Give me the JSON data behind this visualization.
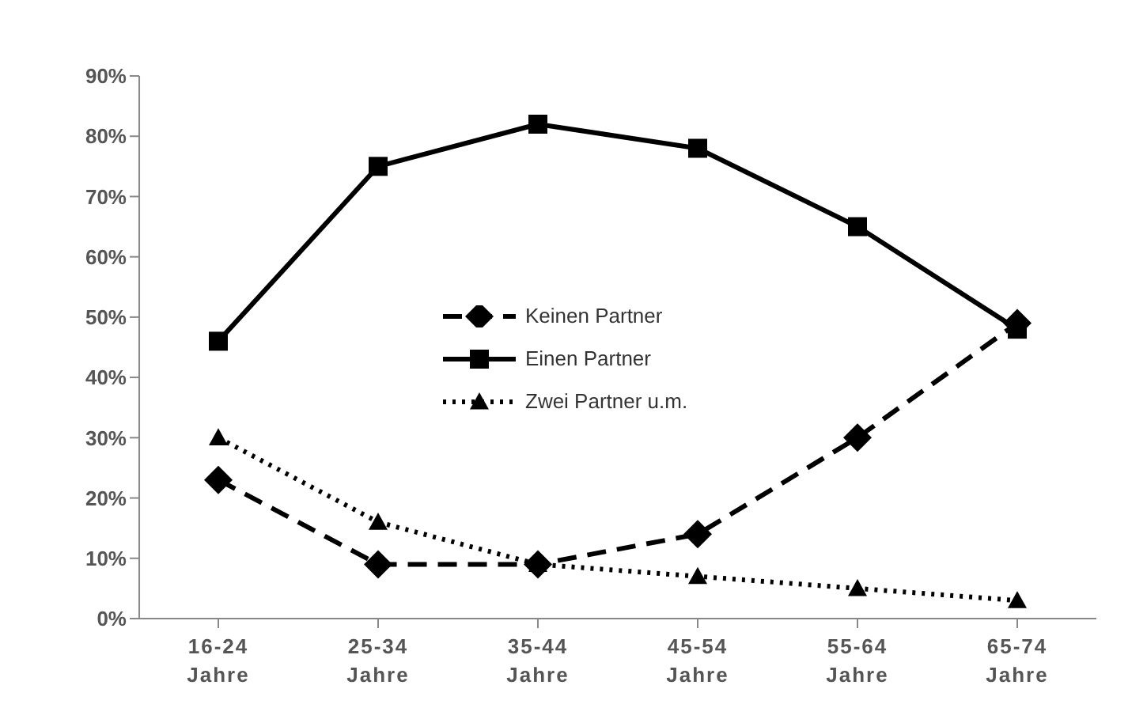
{
  "chart_data": {
    "type": "line",
    "categories": [
      "16-24 Jahre",
      "25-34 Jahre",
      "35-44 Jahre",
      "45-54 Jahre",
      "55-64 Jahre",
      "65-74 Jahre"
    ],
    "series": [
      {
        "name": "Keinen Partner",
        "color": "#000000",
        "values": [
          23,
          9,
          9,
          14,
          30,
          49
        ],
        "marker": "diamond",
        "line_style": "dashed"
      },
      {
        "name": "Einen Partner",
        "color": "#000000",
        "values": [
          46,
          75,
          82,
          78,
          65,
          48
        ],
        "marker": "square",
        "line_style": "solid"
      },
      {
        "name": "Zwei Partner u.m.",
        "color": "#000000",
        "values": [
          30,
          16,
          9,
          7,
          5,
          3
        ],
        "marker": "triangle",
        "line_style": "dotted"
      }
    ],
    "ylim": [
      0,
      90
    ],
    "yticks": [
      {
        "value": 0,
        "label": "0%"
      },
      {
        "value": 10,
        "label": "10%"
      },
      {
        "value": 20,
        "label": "20%"
      },
      {
        "value": 30,
        "label": "30%"
      },
      {
        "value": 40,
        "label": "40%"
      },
      {
        "value": 50,
        "label": "50%"
      },
      {
        "value": 60,
        "label": "60%"
      },
      {
        "value": 70,
        "label": "70%"
      },
      {
        "value": 80,
        "label": "80%"
      },
      {
        "value": 90,
        "label": "90%"
      }
    ],
    "grid": false,
    "legend": "center"
  }
}
